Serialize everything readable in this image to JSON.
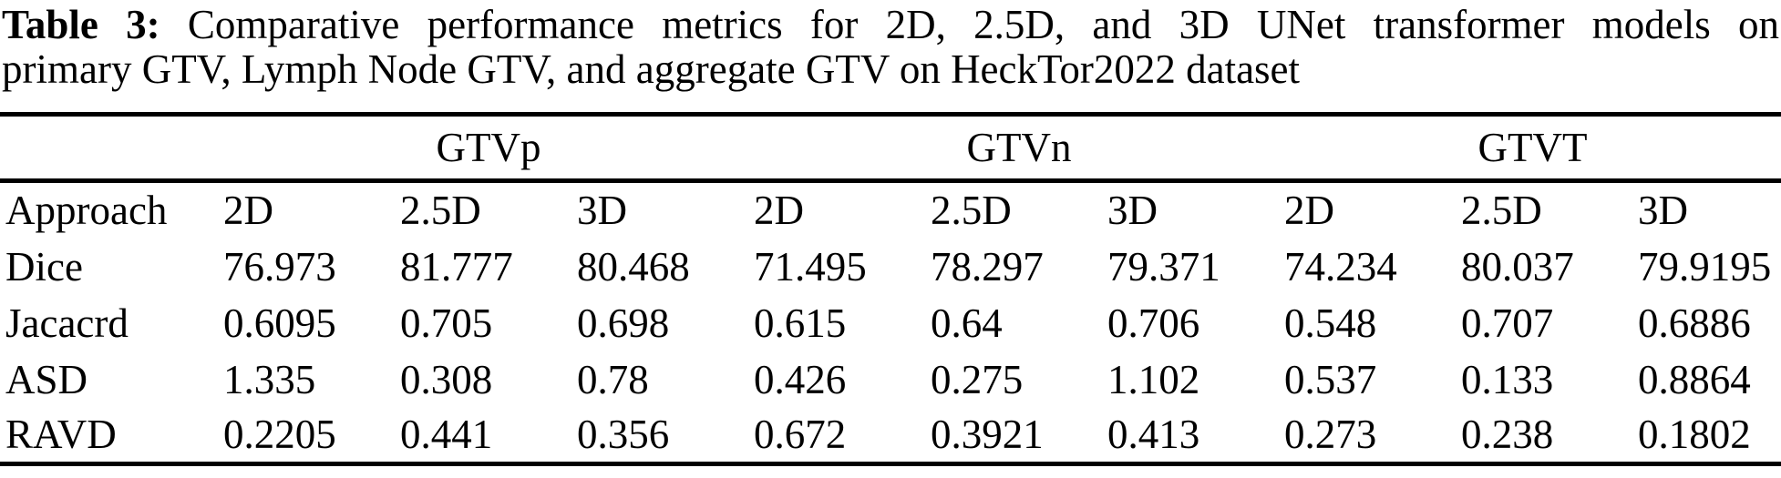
{
  "caption": {
    "label": "Table 3:",
    "line1_rest": "Comparative performance metrics for 2D, 2.5D, and 3D UNet transformer models on",
    "line2": "primary GTV, Lymph Node GTV, and aggregate GTV on HeckTor2022 dataset"
  },
  "chart_data": {
    "type": "table",
    "group_headers": [
      "GTVp",
      "GTVn",
      "GTVT"
    ],
    "columns": [
      "Approach",
      "2D",
      "2.5D",
      "3D",
      "2D",
      "2.5D",
      "3D",
      "2D",
      "2.5D",
      "3D"
    ],
    "rows": [
      {
        "label": "Dice",
        "values": [
          "76.973",
          "81.777",
          "80.468",
          "71.495",
          "78.297",
          "79.371",
          "74.234",
          "80.037",
          "79.9195"
        ]
      },
      {
        "label": "Jacacrd",
        "values": [
          "0.6095",
          "0.705",
          "0.698",
          "0.615",
          "0.64",
          "0.706",
          "0.548",
          "0.707",
          "0.6886"
        ]
      },
      {
        "label": "ASD",
        "values": [
          "1.335",
          "0.308",
          "0.78",
          "0.426",
          "0.275",
          "1.102",
          "0.537",
          "0.133",
          "0.8864"
        ]
      },
      {
        "label": "RAVD",
        "values": [
          "0.2205",
          "0.441",
          "0.356",
          "0.672",
          "0.3921",
          "0.413",
          "0.273",
          "0.238",
          "0.1802"
        ]
      }
    ]
  },
  "colors": {
    "background": "#ffffff",
    "text": "#000000",
    "rule": "#000000"
  }
}
